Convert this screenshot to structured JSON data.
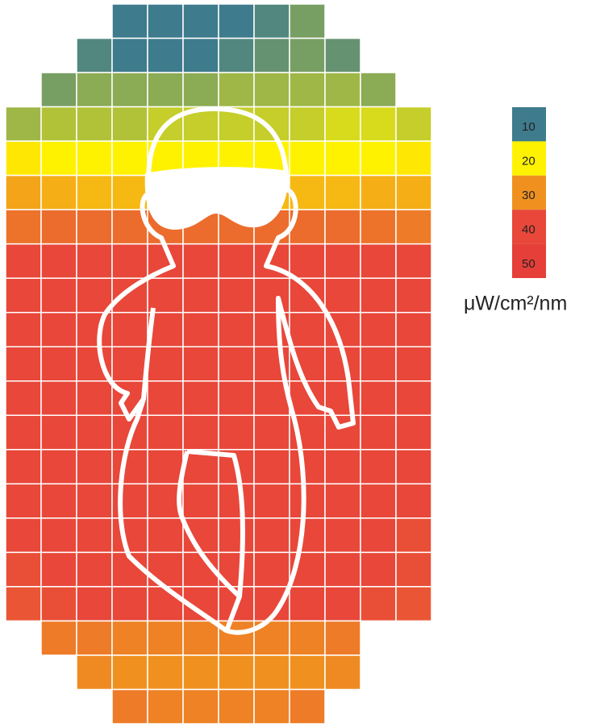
{
  "chart_data": {
    "type": "heatmap",
    "values": [
      [
        null,
        null,
        null,
        10,
        10,
        10,
        10,
        11,
        13,
        null,
        null,
        null
      ],
      [
        null,
        null,
        11,
        10,
        10,
        10,
        11,
        12,
        13,
        12,
        null,
        null
      ],
      [
        null,
        13,
        14,
        14,
        14,
        14,
        15,
        15,
        15,
        15,
        14,
        null
      ],
      [
        15,
        16,
        16,
        16,
        17,
        17,
        17,
        17,
        17,
        18,
        18,
        17
      ],
      [
        21,
        20,
        20,
        20,
        20,
        20,
        20,
        20,
        20,
        20,
        20,
        21
      ],
      [
        28,
        27,
        26,
        26,
        26,
        26,
        26,
        26,
        26,
        26,
        27,
        27
      ],
      [
        34,
        35,
        35,
        35,
        35,
        35,
        35,
        35,
        35,
        35,
        34,
        33
      ],
      [
        40,
        40,
        40,
        40,
        40,
        40,
        40,
        40,
        40,
        40,
        40,
        40
      ],
      [
        40,
        40,
        40,
        40,
        40,
        40,
        40,
        40,
        40,
        40,
        40,
        40
      ],
      [
        40,
        40,
        40,
        40,
        40,
        40,
        40,
        40,
        40,
        40,
        40,
        40
      ],
      [
        40,
        40,
        40,
        40,
        40,
        40,
        40,
        40,
        40,
        40,
        40,
        40
      ],
      [
        40,
        40,
        40,
        40,
        40,
        40,
        40,
        40,
        40,
        40,
        40,
        40
      ],
      [
        40,
        40,
        40,
        40,
        40,
        40,
        40,
        40,
        40,
        40,
        40,
        40
      ],
      [
        40,
        40,
        40,
        40,
        40,
        40,
        40,
        40,
        40,
        40,
        40,
        40
      ],
      [
        40,
        40,
        40,
        40,
        40,
        40,
        40,
        40,
        40,
        40,
        40,
        40
      ],
      [
        40,
        40,
        40,
        40,
        40,
        40,
        40,
        40,
        40,
        40,
        40,
        39
      ],
      [
        39,
        40,
        40,
        40,
        40,
        40,
        40,
        40,
        40,
        40,
        40,
        39
      ],
      [
        38,
        39,
        40,
        40,
        40,
        40,
        40,
        40,
        40,
        40,
        39,
        38
      ],
      [
        null,
        33,
        33,
        32,
        32,
        32,
        32,
        32,
        32,
        33,
        null,
        null
      ],
      [
        null,
        null,
        31,
        30,
        30,
        30,
        30,
        30,
        30,
        31,
        null,
        null
      ],
      [
        null,
        null,
        null,
        33,
        32,
        32,
        32,
        32,
        33,
        null,
        null,
        null
      ]
    ],
    "colorbar": {
      "ticks": [
        10,
        20,
        30,
        40,
        50
      ],
      "colors": [
        "#3e7b8d",
        "#fff200",
        "#f0911f",
        "#e8473a",
        "#e63f39"
      ],
      "label": "μW/cm²/nm"
    }
  }
}
